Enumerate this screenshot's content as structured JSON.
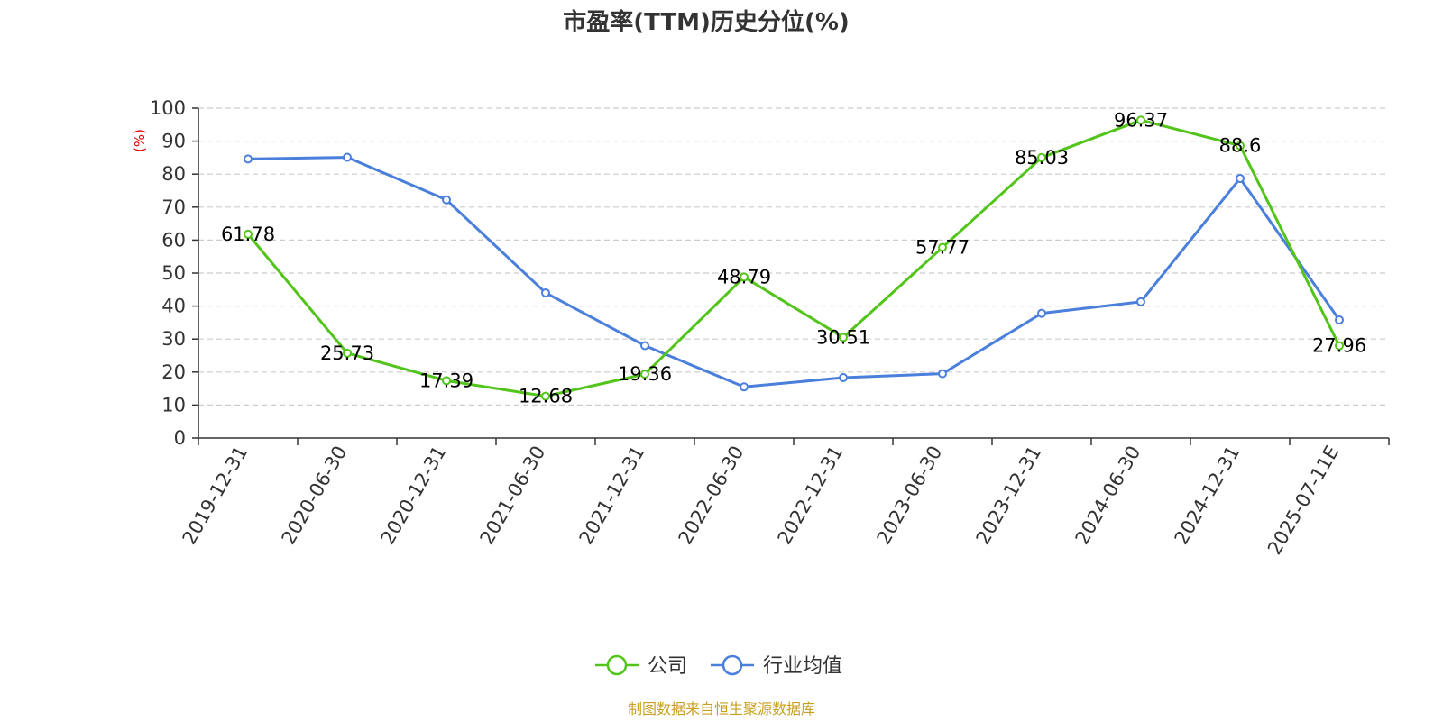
{
  "chart_data": {
    "type": "line",
    "title": "市盈率(TTM)历史分位(%)",
    "ylabel": "(%)",
    "ylim": [
      0,
      100
    ],
    "yticks": [
      0,
      10,
      20,
      30,
      40,
      50,
      60,
      70,
      80,
      90,
      100
    ],
    "categories": [
      "2019-12-31",
      "2020-06-30",
      "2020-12-31",
      "2021-06-30",
      "2021-12-31",
      "2022-06-30",
      "2022-12-31",
      "2023-06-30",
      "2023-12-31",
      "2024-06-30",
      "2024-12-31",
      "2025-07-11E"
    ],
    "grid": true,
    "legend_position": "bottom",
    "series": [
      {
        "name": "公司",
        "color": "#52c41a",
        "values": [
          61.78,
          25.73,
          17.39,
          12.68,
          19.36,
          48.79,
          30.51,
          57.77,
          85.03,
          96.37,
          88.6,
          27.96
        ],
        "labels": [
          "61.78",
          "25.73",
          "17.39",
          "12.68",
          "19.36",
          "48.79",
          "30.51",
          "57.77",
          "85.03",
          "96.37",
          "88.6",
          "27.96"
        ]
      },
      {
        "name": "行业均值",
        "color": "#4a7fdc",
        "values": [
          84.6,
          85.1,
          72.2,
          44.0,
          28.0,
          15.5,
          18.3,
          19.5,
          37.8,
          41.3,
          78.7,
          35.8
        ]
      }
    ]
  },
  "footer": {
    "source": "制图数据来自恒生聚源数据库",
    "source_color": "#c8a020"
  },
  "colors": {
    "axis": "#333333",
    "grid": "#cccccc",
    "unit_label": "#e00000"
  }
}
